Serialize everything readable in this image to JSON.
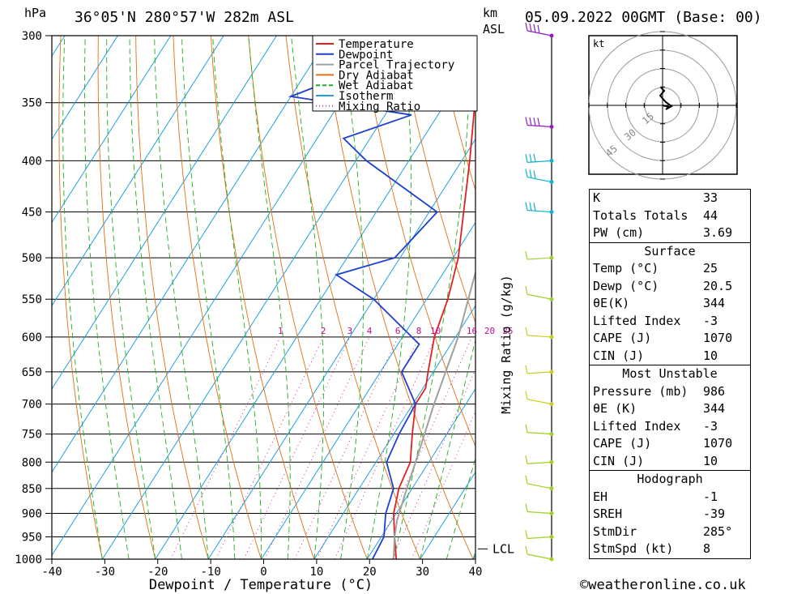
{
  "header": {
    "pressure_unit": "hPa",
    "location": "36°05'N 280°57'W 282m ASL",
    "km_label_1": "km",
    "km_label_2": "ASL",
    "datetime": "05.09.2022 00GMT (Base: 00)"
  },
  "footer": {
    "copyright": "©weatheronline.co.uk"
  },
  "hodograph": {
    "unit": "kt",
    "ring_labels": [
      "15",
      "30",
      "45"
    ]
  },
  "indices": {
    "general": [
      {
        "label": "K",
        "value": "33"
      },
      {
        "label": "Totals Totals",
        "value": "44"
      },
      {
        "label": "PW (cm)",
        "value": "3.69"
      }
    ],
    "surface": {
      "title": "Surface",
      "rows": [
        {
          "label": "Temp (°C)",
          "value": "25"
        },
        {
          "label": "Dewp (°C)",
          "value": "20.5"
        },
        {
          "label": "θE(K)",
          "value": "344"
        },
        {
          "label": "Lifted Index",
          "value": "-3"
        },
        {
          "label": "CAPE (J)",
          "value": "1070"
        },
        {
          "label": "CIN (J)",
          "value": "10"
        }
      ]
    },
    "most_unstable": {
      "title": "Most Unstable",
      "rows": [
        {
          "label": "Pressure (mb)",
          "value": "986"
        },
        {
          "label": "θE (K)",
          "value": "344"
        },
        {
          "label": "Lifted Index",
          "value": "-3"
        },
        {
          "label": "CAPE (J)",
          "value": "1070"
        },
        {
          "label": "CIN (J)",
          "value": "10"
        }
      ]
    },
    "hodograph": {
      "title": "Hodograph",
      "rows": [
        {
          "label": "EH",
          "value": "-1"
        },
        {
          "label": "SREH",
          "value": "-39"
        },
        {
          "label": "StmDir",
          "value": "285°"
        },
        {
          "label": "StmSpd (kt)",
          "value": "8"
        }
      ]
    }
  },
  "chart_data": {
    "type": "line",
    "xlabel": "Dewpoint / Temperature (°C)",
    "ylabel": "hPa",
    "right_label": "Mixing Ratio (g/kg)",
    "lcl_label": "LCL",
    "lcl_pressure": 915,
    "x_ticks": [
      -40,
      -30,
      -20,
      -10,
      0,
      10,
      20,
      30,
      40
    ],
    "y_ticks": [
      300,
      350,
      400,
      450,
      500,
      550,
      600,
      650,
      700,
      750,
      800,
      850,
      900,
      950,
      1000
    ],
    "mixing_ratio_labels": [
      "1",
      "2",
      "3",
      "4",
      "6",
      "8",
      "10",
      "16",
      "20",
      "25"
    ],
    "mixing_ratio_values": [
      1,
      2,
      3,
      4,
      6,
      8,
      10,
      16,
      20,
      25
    ],
    "legend": [
      {
        "name": "Temperature",
        "color": "#e02020"
      },
      {
        "name": "Dewpoint",
        "color": "#1f3fd0"
      },
      {
        "name": "Parcel Trajectory",
        "color": "#a0a0a0"
      },
      {
        "name": "Dry Adiabat",
        "color": "#e07010"
      },
      {
        "name": "Wet Adiabat",
        "color": "#20b020"
      },
      {
        "name": "Isotherm",
        "color": "#20a0e0"
      },
      {
        "name": "Mixing Ratio",
        "color": "#d020a0"
      }
    ],
    "series": [
      {
        "name": "Temperature",
        "points": [
          [
            1000,
            25.5
          ],
          [
            950,
            22.5
          ],
          [
            900,
            19.5
          ],
          [
            850,
            17.5
          ],
          [
            800,
            16.5
          ],
          [
            750,
            13.5
          ],
          [
            700,
            10.5
          ],
          [
            675,
            10.5
          ],
          [
            650,
            9
          ],
          [
            600,
            6
          ],
          [
            550,
            4
          ],
          [
            500,
            1
          ],
          [
            450,
            -3.5
          ],
          [
            400,
            -8.5
          ],
          [
            350,
            -14.5
          ],
          [
            320,
            -17.5
          ],
          [
            300,
            -20
          ]
        ]
      },
      {
        "name": "Dewpoint",
        "points": [
          [
            1000,
            21
          ],
          [
            950,
            20.5
          ],
          [
            900,
            18
          ],
          [
            850,
            16.5
          ],
          [
            800,
            12
          ],
          [
            750,
            11
          ],
          [
            700,
            10.5
          ],
          [
            650,
            4
          ],
          [
            610,
            4
          ],
          [
            550,
            -10
          ],
          [
            520,
            -20
          ],
          [
            500,
            -11
          ],
          [
            450,
            -8.5
          ],
          [
            400,
            -28
          ],
          [
            380,
            -35
          ],
          [
            360,
            -25
          ],
          [
            345,
            -50
          ],
          [
            320,
            -38
          ],
          [
            308,
            -48
          ],
          [
            300,
            -42
          ]
        ]
      },
      {
        "name": "Parcel Trajectory",
        "points": [
          [
            1000,
            25
          ],
          [
            950,
            22.5
          ],
          [
            915,
            21
          ],
          [
            850,
            19
          ],
          [
            800,
            17.5
          ],
          [
            700,
            14
          ],
          [
            600,
            10.5
          ],
          [
            500,
            5
          ],
          [
            450,
            1
          ],
          [
            400,
            -5
          ],
          [
            370,
            -9
          ]
        ]
      }
    ],
    "wind_barbs_levels": [
      300,
      370,
      400,
      420,
      450,
      500,
      550,
      600,
      650,
      700,
      750,
      800,
      850,
      900,
      950,
      1000
    ]
  }
}
